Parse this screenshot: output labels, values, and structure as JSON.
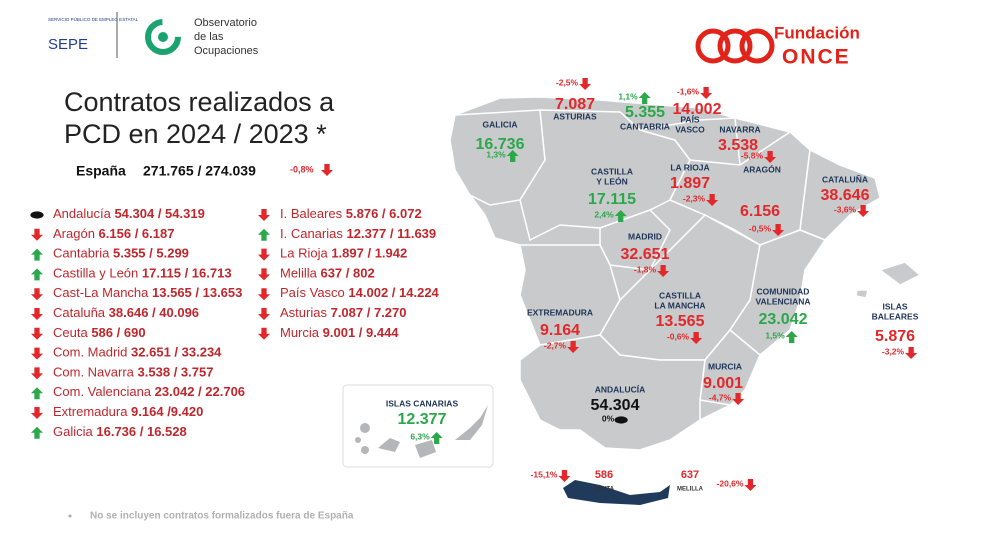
{
  "logos": {
    "sepe_sub": "SERVICIO PÚBLICO DE EMPLEO ESTATAL",
    "sepe": "SEPE",
    "observatorio": [
      "Observatorio",
      "de las",
      "Ocupaciones"
    ],
    "once": [
      "Fundación",
      "ONCE"
    ]
  },
  "title": [
    "Contratos realizados a",
    "PCD en 2024 / 2023 *"
  ],
  "total": {
    "label": "España",
    "figures": "271.765 /  274.039",
    "change": "-0,8%",
    "trend": "down"
  },
  "list": [
    {
      "name": "Andalucía",
      "figures": "54.304 / 54.319",
      "trend": "flat"
    },
    {
      "name": "Aragón",
      "figures": "6.156 / 6.187",
      "trend": "down"
    },
    {
      "name": "Cantabria",
      "figures": "5.355 / 5.299",
      "trend": "up"
    },
    {
      "name": "Castilla y León",
      "figures": "17.115 / 16.713",
      "trend": "up"
    },
    {
      "name": "Cast-La Mancha",
      "figures": "13.565 / 13.653",
      "trend": "down"
    },
    {
      "name": "Cataluña",
      "figures": "38.646 / 40.096",
      "trend": "down"
    },
    {
      "name": "Ceuta",
      "figures": "586 / 690",
      "trend": "down"
    },
    {
      "name": "Com. Madrid",
      "figures": "32.651 / 33.234",
      "trend": "down"
    },
    {
      "name": "Com. Navarra",
      "figures": "3.538 / 3.757",
      "trend": "down"
    },
    {
      "name": "Com. Valenciana",
      "figures": "23.042 / 22.706",
      "trend": "up"
    },
    {
      "name": "Extremadura",
      "figures": "9.164 /9.420",
      "trend": "down"
    },
    {
      "name": "Galicia",
      "figures": "16.736 / 16.528",
      "trend": "up"
    },
    {
      "name": "I. Baleares",
      "figures": "5.876 / 6.072",
      "trend": "down"
    },
    {
      "name": "I. Canarias",
      "figures": "12.377 / 11.639",
      "trend": "up"
    },
    {
      "name": "La Rioja",
      "figures": "1.897 / 1.942",
      "trend": "down"
    },
    {
      "name": "Melilla",
      "figures": "637 / 802",
      "trend": "down"
    },
    {
      "name": "País Vasco",
      "figures": "14.002 / 14.224",
      "trend": "down"
    },
    {
      "name": "Asturias",
      "figures": "7.087 / 7.270",
      "trend": "down"
    },
    {
      "name": "Murcia",
      "figures": "9.001 / 9.444",
      "trend": "down"
    }
  ],
  "map_labels": [
    {
      "name": [
        "GALICIA"
      ],
      "value": "16.736",
      "change": "1,3%",
      "trend": "up"
    },
    {
      "name": [
        "ASTURIAS"
      ],
      "value": "7.087",
      "change": "-2,5%",
      "trend": "down"
    },
    {
      "name": [
        "CANTABRIA"
      ],
      "value": "5.355",
      "change": "1,1%",
      "trend": "up"
    },
    {
      "name": [
        "PAÍS",
        "VASCO"
      ],
      "value": "14.002",
      "change": "-1,6%",
      "trend": "down"
    },
    {
      "name": [
        "NAVARRA"
      ],
      "value": "3.538",
      "change": "-5,8%",
      "trend": "down"
    },
    {
      "name": [
        "LA RIOJA"
      ],
      "value": "1.897",
      "change": "-2,3%",
      "trend": "down"
    },
    {
      "name": [
        "CASTILLA",
        "Y LEÓN"
      ],
      "value": "17.115",
      "change": "2,4%",
      "trend": "up"
    },
    {
      "name": [
        "ARAGÓN"
      ],
      "value": "6.156",
      "change": "-0,5%",
      "trend": "down"
    },
    {
      "name": [
        "CATALUÑA"
      ],
      "value": "38.646",
      "change": "-3,6%",
      "trend": "down"
    },
    {
      "name": [
        "MADRID"
      ],
      "value": "32.651",
      "change": "-1,8%",
      "trend": "down"
    },
    {
      "name": [
        "EXTREMADURA"
      ],
      "value": "9.164",
      "change": "-2,7%",
      "trend": "down"
    },
    {
      "name": [
        "CASTILLA",
        "LA MANCHA"
      ],
      "value": "13.565",
      "change": "-0,6%",
      "trend": "down"
    },
    {
      "name": [
        "COMUNIDAD",
        "VALENCIANA"
      ],
      "value": "23.042",
      "change": "1,5%",
      "trend": "up"
    },
    {
      "name": [
        "ISLAS",
        "BALEARES"
      ],
      "value": "5.876",
      "change": "-3,2%",
      "trend": "down"
    },
    {
      "name": [
        "MURCIA"
      ],
      "value": "9.001",
      "change": "-4,7%",
      "trend": "down"
    },
    {
      "name": [
        "ANDALUCÍA"
      ],
      "value": "54.304",
      "change": "0%",
      "trend": "flat"
    },
    {
      "name": [
        "ISLAS CANARIAS"
      ],
      "value": "12.377",
      "change": "6,3%",
      "trend": "up"
    },
    {
      "name": [
        "CEUTA"
      ],
      "value": "586",
      "change": "-15,1%",
      "trend": "down"
    },
    {
      "name": [
        "MELILLA"
      ],
      "value": "637",
      "change": "-20,6%",
      "trend": "down"
    }
  ],
  "footnote": "No se incluyen contratos formalizados fuera de España"
}
